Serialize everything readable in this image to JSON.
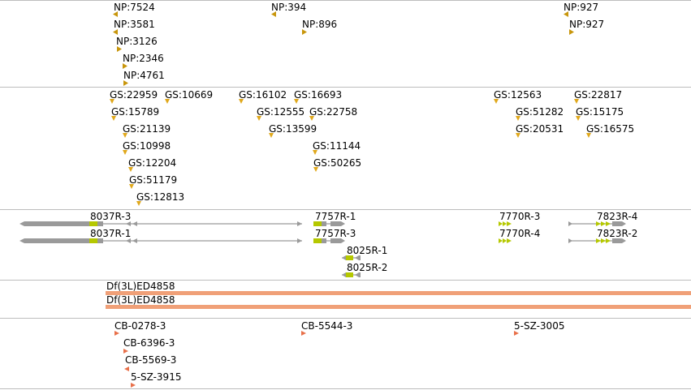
{
  "colors": {
    "np_marker": "#c8960c",
    "gs_marker": "#e0a81c",
    "gene_body": "#9a9a9a",
    "gene_cds": "#b5c800",
    "deficiency_bar": "#f0a078",
    "probe_marker": "#e8704a",
    "separator": "#bdbdbd"
  },
  "tracks": {
    "np": {
      "items": [
        {
          "label": "NP:7524",
          "dir": "left"
        },
        {
          "label": "NP:3581",
          "dir": "left"
        },
        {
          "label": "NP:3126",
          "dir": "right"
        },
        {
          "label": "NP:2346",
          "dir": "right"
        },
        {
          "label": "NP:4761",
          "dir": "right"
        },
        {
          "label": "NP:394",
          "dir": "left"
        },
        {
          "label": "NP:896",
          "dir": "right"
        },
        {
          "label": "NP:927",
          "dir": "left"
        },
        {
          "label": "NP:927",
          "dir": "right"
        }
      ]
    },
    "gs": {
      "items": [
        {
          "label": "GS:22959"
        },
        {
          "label": "GS:10669"
        },
        {
          "label": "GS:15789"
        },
        {
          "label": "GS:21139"
        },
        {
          "label": "GS:10998"
        },
        {
          "label": "GS:12204"
        },
        {
          "label": "GS:51179"
        },
        {
          "label": "GS:12813"
        },
        {
          "label": "GS:16102"
        },
        {
          "label": "GS:16693"
        },
        {
          "label": "GS:12555"
        },
        {
          "label": "GS:22758"
        },
        {
          "label": "GS:13599"
        },
        {
          "label": "GS:11144"
        },
        {
          "label": "GS:50265"
        },
        {
          "label": "GS:12563"
        },
        {
          "label": "GS:22817"
        },
        {
          "label": "GS:51282"
        },
        {
          "label": "GS:15175"
        },
        {
          "label": "GS:20531"
        },
        {
          "label": "GS:16575"
        }
      ]
    },
    "genes": {
      "items": [
        {
          "label": "8037R-3"
        },
        {
          "label": "8037R-1"
        },
        {
          "label": "7757R-1"
        },
        {
          "label": "7757R-3"
        },
        {
          "label": "8025R-1"
        },
        {
          "label": "8025R-2"
        },
        {
          "label": "7770R-3"
        },
        {
          "label": "7770R-4"
        },
        {
          "label": "7823R-4"
        },
        {
          "label": "7823R-2"
        }
      ]
    },
    "deficiencies": {
      "items": [
        {
          "label": "Df(3L)ED4858"
        },
        {
          "label": "Df(3L)ED4858"
        }
      ]
    },
    "probes": {
      "items": [
        {
          "label": "CB-0278-3"
        },
        {
          "label": "CB-6396-3"
        },
        {
          "label": "CB-5569-3"
        },
        {
          "label": "5-SZ-3915"
        },
        {
          "label": "CB-5544-3"
        },
        {
          "label": "5-SZ-3005"
        }
      ]
    }
  }
}
